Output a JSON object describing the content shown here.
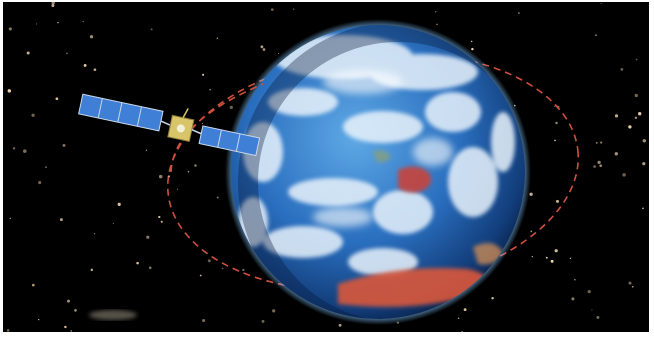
{
  "image": {
    "subject": "satellite-orbiting-earth",
    "colors": {
      "space": "#000000",
      "ocean": "#1f5fa8",
      "cloud": "#e8f2fb",
      "land_red": "#d9583a",
      "orbit": "#d0503c",
      "panel": "#3f7fd6",
      "satellite_body": "#d8c56a",
      "star": "#f2d9b0"
    }
  }
}
